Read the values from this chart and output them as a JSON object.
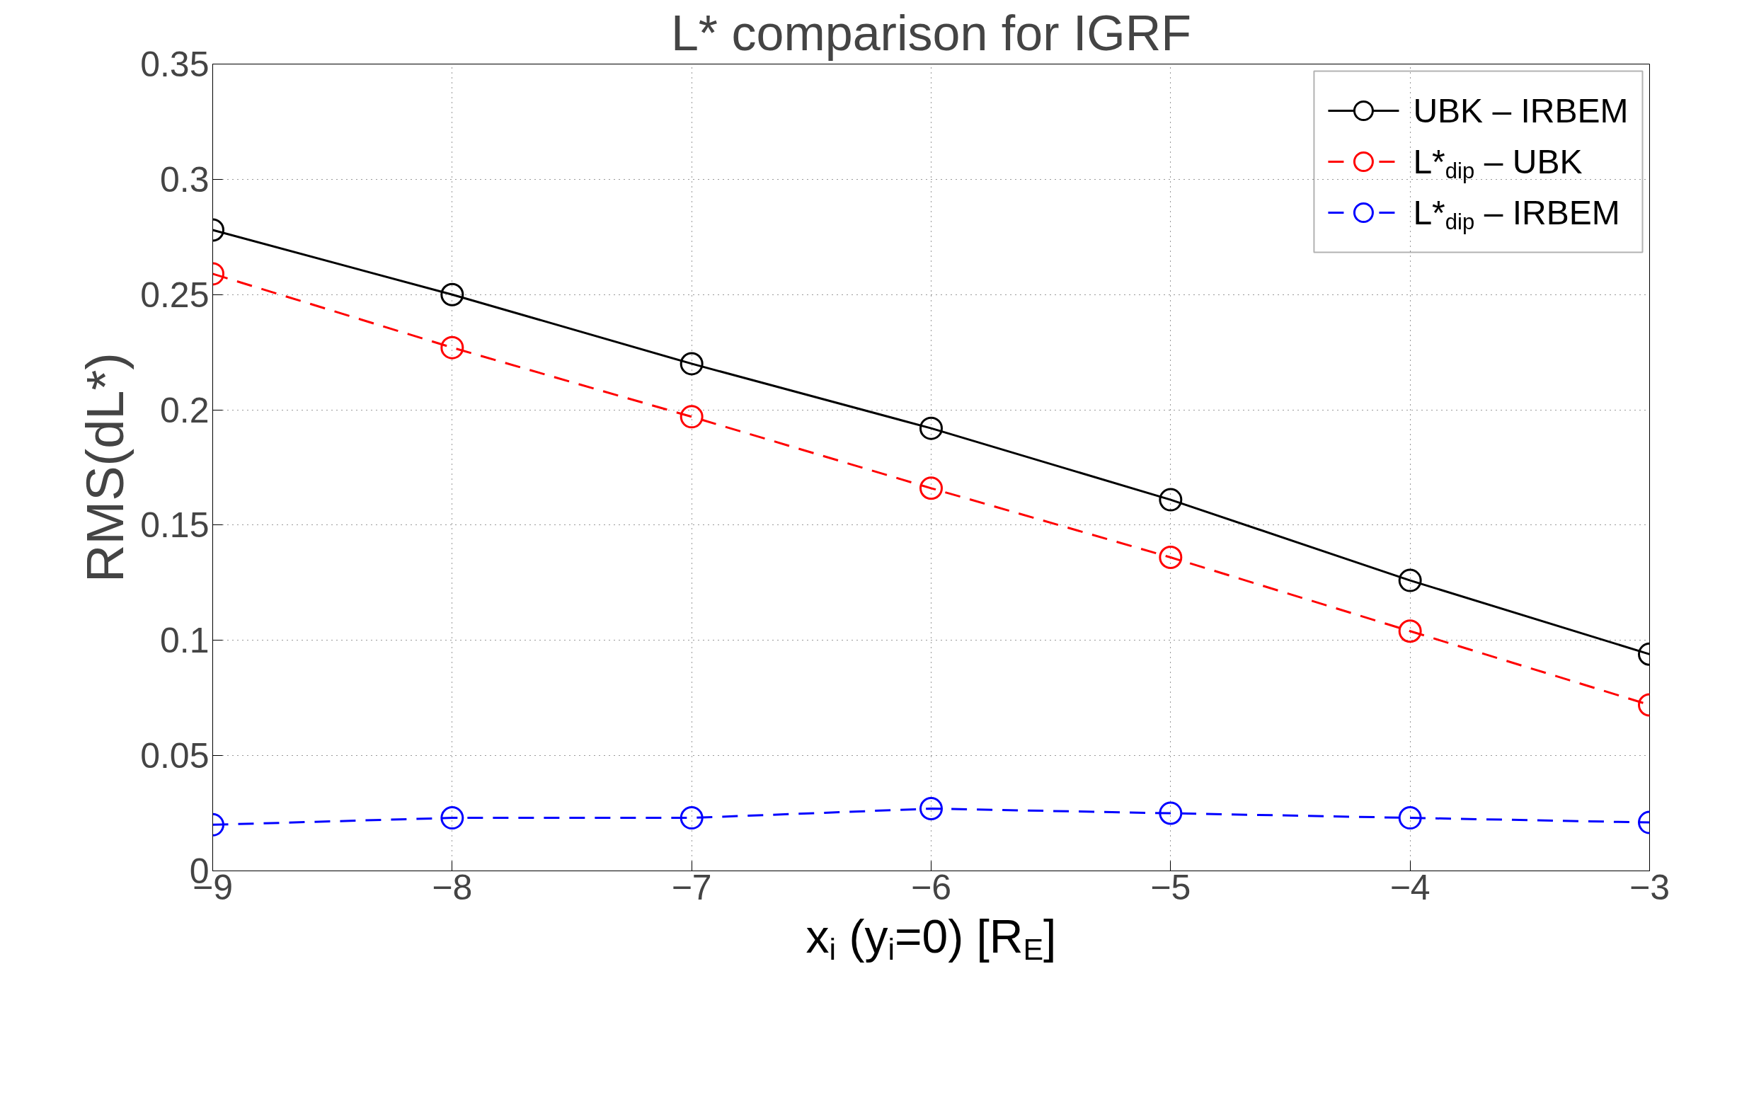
{
  "chart_data": {
    "type": "line",
    "title": "L* comparison for IGRF",
    "xlabel": "x$_{i}$ (y$_{i}$=0) [R$_{E}$]",
    "ylabel": "RMS(dL*)",
    "x": [
      -9,
      -8,
      -7,
      -6,
      -5,
      -4,
      -3
    ],
    "series": [
      {
        "name": "UBK – IRBEM",
        "color": "#000000",
        "line_style": "solid",
        "values": [
          0.278,
          0.25,
          0.22,
          0.192,
          0.161,
          0.126,
          0.094
        ]
      },
      {
        "name": "L*$_{dip}$ – UBK",
        "color": "#ff0000",
        "line_style": "dashed",
        "values": [
          0.259,
          0.227,
          0.197,
          0.166,
          0.136,
          0.104,
          0.072
        ]
      },
      {
        "name": "L*$_{dip}$ – IRBEM",
        "color": "#0000ff",
        "line_style": "dashed",
        "values": [
          0.02,
          0.023,
          0.023,
          0.027,
          0.025,
          0.023,
          0.021
        ]
      }
    ],
    "xlim": [
      -9,
      -3
    ],
    "ylim": [
      0,
      0.35
    ],
    "xticks": [
      {
        "value": -9,
        "label": "−9"
      },
      {
        "value": -8,
        "label": "−8"
      },
      {
        "value": -7,
        "label": "−7"
      },
      {
        "value": -6,
        "label": "−6"
      },
      {
        "value": -5,
        "label": "−5"
      },
      {
        "value": -4,
        "label": "−4"
      },
      {
        "value": -3,
        "label": "−3"
      }
    ],
    "yticks": [
      0,
      0.05,
      0.1,
      0.15,
      0.2,
      0.25,
      0.3,
      0.35
    ],
    "grid": true,
    "legend": "top right",
    "marker": "circle"
  }
}
